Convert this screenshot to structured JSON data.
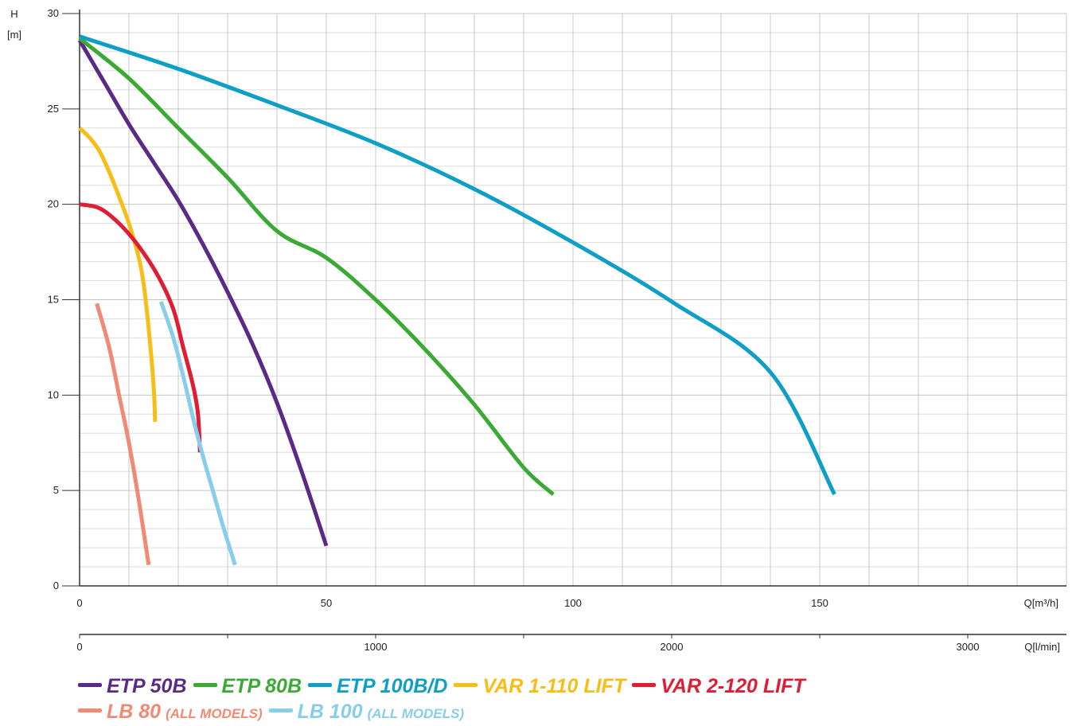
{
  "chart_data": {
    "type": "line",
    "y_axis": {
      "label_top": "H",
      "label_unit": "[m]",
      "min": 0,
      "max": 30,
      "ticks": [
        0,
        5,
        10,
        15,
        20,
        25,
        30
      ]
    },
    "x_axis": {
      "label": "Q[m³/h]",
      "min": 0,
      "max": 200,
      "ticks": [
        0,
        50,
        100,
        150
      ]
    },
    "x_axis2": {
      "label": "Q[l/min]",
      "ticks": [
        0,
        1000,
        2000,
        3000
      ],
      "factor_per_m3h": 16.6667
    },
    "grid": true,
    "series": [
      {
        "name": "ETP 50B",
        "color": "#5b2a86",
        "points": [
          [
            0,
            28.6
          ],
          [
            5,
            26.4
          ],
          [
            10,
            24.2
          ],
          [
            15,
            22.2
          ],
          [
            20,
            20.2
          ],
          [
            25,
            17.9
          ],
          [
            30,
            15.4
          ],
          [
            35,
            12.7
          ],
          [
            40,
            9.6
          ],
          [
            45,
            6.0
          ],
          [
            50,
            2.1
          ]
        ]
      },
      {
        "name": "ETP 80B",
        "color": "#3aaa35",
        "points": [
          [
            0,
            28.7
          ],
          [
            10,
            26.6
          ],
          [
            20,
            24.0
          ],
          [
            30,
            21.4
          ],
          [
            40,
            18.6
          ],
          [
            50,
            17.2
          ],
          [
            60,
            15.0
          ],
          [
            70,
            12.4
          ],
          [
            80,
            9.5
          ],
          [
            90,
            6.2
          ],
          [
            96,
            4.8
          ]
        ]
      },
      {
        "name": "ETP 100B/D",
        "color": "#0f9fc6",
        "points": [
          [
            0,
            28.8
          ],
          [
            20,
            27.1
          ],
          [
            40,
            25.2
          ],
          [
            60,
            23.2
          ],
          [
            80,
            20.8
          ],
          [
            100,
            18.0
          ],
          [
            120,
            14.9
          ],
          [
            140,
            11.2
          ],
          [
            153,
            4.8
          ]
        ]
      },
      {
        "name": "VAR 1-110 LIFT",
        "color": "#f7be18",
        "points": [
          [
            0,
            24.0
          ],
          [
            2,
            23.5
          ],
          [
            4,
            22.8
          ],
          [
            6,
            21.7
          ],
          [
            8,
            20.4
          ],
          [
            10,
            19.0
          ],
          [
            12,
            17.2
          ],
          [
            13,
            15.8
          ],
          [
            14,
            13.5
          ],
          [
            15,
            10.5
          ],
          [
            15.3,
            8.6
          ]
        ]
      },
      {
        "name": "VAR 2-120 LIFT",
        "color": "#dd1e35",
        "points": [
          [
            0,
            20.0
          ],
          [
            4,
            19.8
          ],
          [
            8,
            19.0
          ],
          [
            12,
            17.8
          ],
          [
            16,
            16.2
          ],
          [
            19,
            14.5
          ],
          [
            21,
            12.5
          ],
          [
            23,
            10.5
          ],
          [
            24,
            9.0
          ],
          [
            24.4,
            7.0
          ]
        ]
      },
      {
        "name": "LB 80",
        "sub": "(ALL MODELS)",
        "color": "#f08a76",
        "points": [
          [
            3.5,
            14.8
          ],
          [
            6,
            12.5
          ],
          [
            8,
            10.0
          ],
          [
            10,
            7.5
          ],
          [
            12,
            4.5
          ],
          [
            14,
            1.1
          ]
        ]
      },
      {
        "name": "LB 100",
        "sub": "(ALL MODELS)",
        "color": "#88cdea",
        "points": [
          [
            16.5,
            14.9
          ],
          [
            19,
            13.0
          ],
          [
            21,
            11.0
          ],
          [
            23,
            8.8
          ],
          [
            25,
            6.8
          ],
          [
            27,
            5.0
          ],
          [
            29,
            3.2
          ],
          [
            31.5,
            1.1
          ]
        ]
      }
    ]
  }
}
